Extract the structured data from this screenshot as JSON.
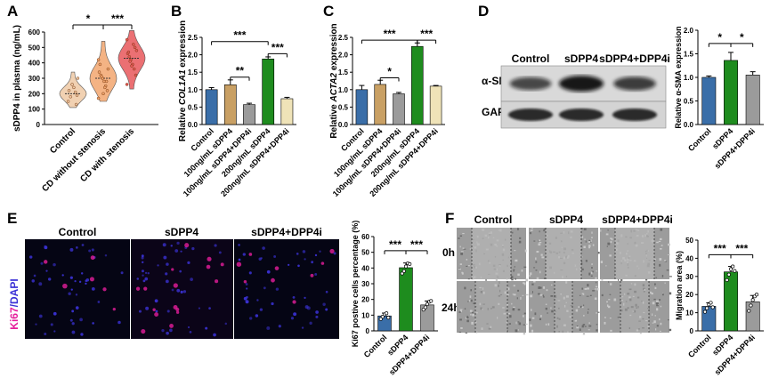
{
  "panels": {
    "A": "A",
    "B": "B",
    "C": "C",
    "D": "D",
    "E": "E",
    "F": "F"
  },
  "colors": {
    "control": "#3a6ea8",
    "dose100": "#c9a064",
    "dose100i": "#9b9b9b",
    "dose200": "#1e8c1e",
    "dose200i": "#efe3b8",
    "violin_control": "#efc9a4",
    "violin_cd_without": "#f2a66e",
    "violin_cd_with": "#e8575a",
    "ki67": "#e51d9b",
    "dapi": "#3b32d6"
  },
  "western_blot": {
    "lanes": [
      "Control",
      "sDPP4",
      "sDPP4+DPP4i"
    ],
    "bands": [
      "α-SMA",
      "GAPDH"
    ],
    "alpha_sma_relative_intensity": [
      0.6,
      1.0,
      0.7
    ],
    "gapdh_relative_intensity": [
      1.0,
      1.0,
      1.0
    ]
  },
  "microscopy_E": {
    "headers": [
      "Control",
      "sDPP4",
      "sDPP4+DPP4i"
    ],
    "stain_label_a": "Ki67",
    "stain_label_sep": "/",
    "stain_label_b": "DAPI"
  },
  "microscopy_F": {
    "headers": [
      "Control",
      "sDPP4",
      "sDPP4+DPP4i"
    ],
    "rows": [
      "0h",
      "24h"
    ]
  },
  "chart_data": [
    {
      "panel": "A",
      "type": "violin",
      "ylabel": "sDPP4 in plasma (ng/mL)",
      "ylim": [
        0,
        600
      ],
      "yticks": [
        0,
        100,
        200,
        300,
        400,
        500,
        600
      ],
      "categories": [
        "Control",
        "CD without stenosis",
        "CD with stenosis"
      ],
      "medians": [
        200,
        300,
        430
      ],
      "ranges": [
        [
          110,
          340
        ],
        [
          150,
          540
        ],
        [
          230,
          610
        ]
      ],
      "points": [
        [
          150,
          190,
          210,
          240,
          260,
          180,
          220,
          300,
          130
        ],
        [
          170,
          220,
          250,
          280,
          300,
          320,
          340,
          360,
          280,
          240,
          200,
          310,
          390,
          420
        ],
        [
          260,
          320,
          360,
          390,
          420,
          440,
          460,
          480,
          500,
          520,
          380,
          410,
          470,
          550
        ]
      ],
      "significance": [
        {
          "from": 0,
          "to": 1,
          "label": "*"
        },
        {
          "from": 1,
          "to": 2,
          "label": "***"
        }
      ]
    },
    {
      "panel": "B",
      "type": "bar",
      "ylabel_prefix": "Relative ",
      "ylabel_gene": "COL1A1",
      "ylabel_suffix": " expression",
      "ylim": [
        0,
        2.5
      ],
      "yticks": [
        0.0,
        0.5,
        1.0,
        1.5,
        2.0,
        2.5
      ],
      "categories": [
        "Control",
        "100ng/mL sDPP4",
        "100ng/mL sDPP4+DPP4i",
        "200ng/mL sDPP4",
        "200ng/mL sDPP4+DPP4i"
      ],
      "values": [
        1.0,
        1.14,
        0.57,
        1.88,
        0.74
      ],
      "errors": [
        0.06,
        0.14,
        0.04,
        0.06,
        0.04
      ],
      "significance": [
        {
          "from": 0,
          "to": 3,
          "label": "***",
          "level": 2.38
        },
        {
          "from": 3,
          "to": 4,
          "label": "***",
          "level": 2.03
        },
        {
          "from": 1,
          "to": 2,
          "label": "**",
          "level": 1.36
        }
      ]
    },
    {
      "panel": "C",
      "type": "bar",
      "ylabel_prefix": "Relative ",
      "ylabel_gene": "ACTA2",
      "ylabel_suffix": " expression",
      "ylim": [
        0,
        2.5
      ],
      "yticks": [
        0.0,
        0.5,
        1.0,
        1.5,
        2.0,
        2.5
      ],
      "categories": [
        "Control",
        "100ng/mL sDPP4",
        "100ng/mL sDPP4+DPP4i",
        "200ng/mL sDPP4",
        "200ng/mL sDPP4+DPP4i"
      ],
      "values": [
        1.0,
        1.15,
        0.88,
        2.24,
        1.1
      ],
      "errors": [
        0.12,
        0.12,
        0.04,
        0.1,
        0.02
      ],
      "significance": [
        {
          "from": 0,
          "to": 3,
          "label": "***",
          "level": 2.42
        },
        {
          "from": 3,
          "to": 4,
          "label": "***",
          "level": 2.42
        },
        {
          "from": 1,
          "to": 2,
          "label": "*",
          "level": 1.34
        }
      ]
    },
    {
      "panel": "D",
      "type": "bar",
      "ylabel": "Relative α-SMA expression",
      "ylim": [
        0,
        2.0
      ],
      "yticks": [
        0.0,
        0.5,
        1.0,
        1.5,
        2.0
      ],
      "categories": [
        "Control",
        "sDPP4",
        "sDPP4+DPP4i"
      ],
      "values": [
        1.0,
        1.36,
        1.05
      ],
      "errors": [
        0.03,
        0.17,
        0.07
      ],
      "significance": [
        {
          "from": 0,
          "to": 1,
          "label": "*",
          "level": 1.72
        },
        {
          "from": 1,
          "to": 2,
          "label": "*",
          "level": 1.72
        }
      ]
    },
    {
      "panel": "E",
      "type": "bar",
      "ylabel": "Ki67 postive cells percentage (%)",
      "ylim": [
        0,
        60
      ],
      "yticks": [
        0,
        10,
        20,
        30,
        40,
        50,
        60
      ],
      "categories": [
        "Control",
        "sDPP4",
        "sDPP4+DPP4i"
      ],
      "values": [
        9.5,
        40.2,
        16.5
      ],
      "errors": [
        1.8,
        3.0,
        2.5
      ],
      "points": [
        [
          7.5,
          9.0,
          10.5,
          11.2,
          8.4
        ],
        [
          36.5,
          38.0,
          41.0,
          43.0,
          42.5
        ],
        [
          13.5,
          15.0,
          17.0,
          18.5,
          19.0
        ]
      ],
      "significance": [
        {
          "from": 0,
          "to": 1,
          "label": "***",
          "level": 51
        },
        {
          "from": 1,
          "to": 2,
          "label": "***",
          "level": 51
        }
      ]
    },
    {
      "panel": "F",
      "type": "bar",
      "ylabel": "Migration area (%)",
      "ylim": [
        0,
        50
      ],
      "yticks": [
        0,
        10,
        20,
        30,
        40,
        50
      ],
      "categories": [
        "Control",
        "sDPP4",
        "sDPP4+DPP4i"
      ],
      "values": [
        13.5,
        32.5,
        16.0
      ],
      "errors": [
        2.0,
        3.0,
        3.5
      ],
      "points": [
        [
          10.5,
          12.5,
          14.5,
          15.5,
          13.0
        ],
        [
          28.0,
          31.0,
          34.0,
          35.5,
          33.0
        ],
        [
          11.0,
          14.0,
          17.0,
          19.0,
          20.0
        ]
      ],
      "significance": [
        {
          "from": 0,
          "to": 1,
          "label": "***",
          "level": 42
        },
        {
          "from": 1,
          "to": 2,
          "label": "***",
          "level": 42
        }
      ]
    }
  ]
}
